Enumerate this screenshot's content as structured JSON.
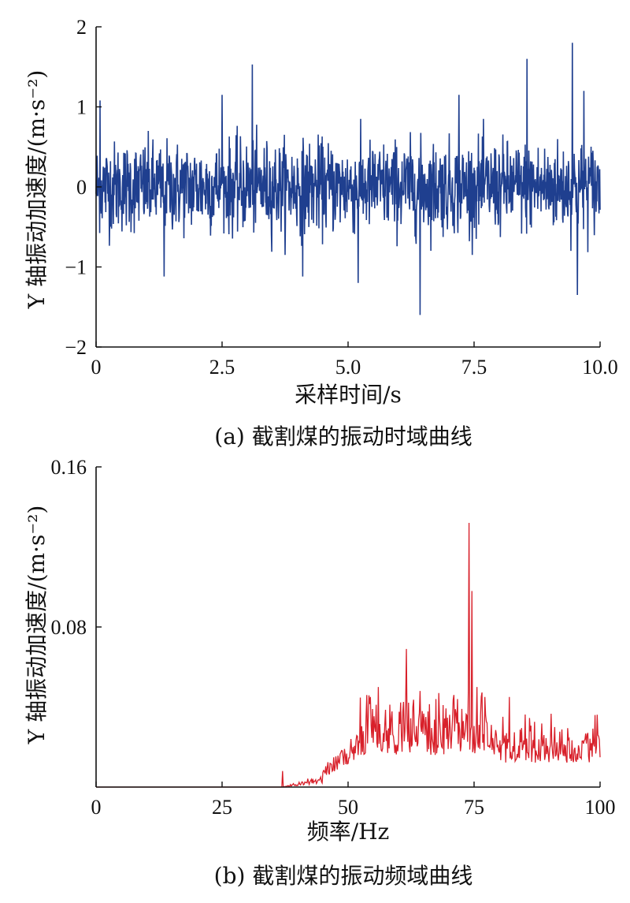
{
  "chart_data": [
    {
      "type": "line",
      "color": "#1f3f8f",
      "ylabel": "Y 轴振动加速度/(m·s⁻²)",
      "xlabel": "采样时间/s",
      "caption": "(a) 截割煤的振动时域曲线",
      "xlim": [
        0,
        10
      ],
      "ylim": [
        -2,
        2
      ],
      "xticks": [
        0,
        2.5,
        5.0,
        7.5,
        10.0
      ],
      "xtick_labels": [
        "0",
        "2.5",
        "5.0",
        "7.5",
        "10.0"
      ],
      "yticks": [
        -2,
        -1,
        0,
        1,
        2
      ],
      "ytick_labels": [
        "−2",
        "−1",
        "0",
        "1",
        "2"
      ],
      "peaks": [
        {
          "x": 0.08,
          "y": 1.08
        },
        {
          "x": 1.35,
          "y": -1.12
        },
        {
          "x": 3.1,
          "y": 1.53
        },
        {
          "x": 4.1,
          "y": -1.12
        },
        {
          "x": 6.43,
          "y": -1.6
        },
        {
          "x": 8.55,
          "y": 1.6
        },
        {
          "x": 9.45,
          "y": 1.8
        },
        {
          "x": 9.55,
          "y": -1.35
        },
        {
          "x": 9.68,
          "y": 1.2
        },
        {
          "x": 5.2,
          "y": -1.2
        },
        {
          "x": 2.5,
          "y": 1.15
        },
        {
          "x": 7.2,
          "y": 1.15
        }
      ]
    },
    {
      "type": "line",
      "color": "#d8202a",
      "ylabel": "Y 轴振动加速度/(m·s⁻²)",
      "xlabel": "频率/Hz",
      "caption": "(b) 截割煤的振动频域曲线",
      "xlim": [
        0,
        100
      ],
      "ylim": [
        0,
        0.16
      ],
      "xticks": [
        0,
        25,
        50,
        75,
        100
      ],
      "xtick_labels": [
        "0",
        "25",
        "50",
        "75",
        "100"
      ],
      "yticks": [
        0.08,
        0.16
      ],
      "ytick_labels": [
        "0.08",
        "0.16"
      ],
      "peaks": [
        {
          "x": 37,
          "y": 0.008
        },
        {
          "x": 61.5,
          "y": 0.069
        },
        {
          "x": 74,
          "y": 0.132
        },
        {
          "x": 74.5,
          "y": 0.098
        },
        {
          "x": 75.5,
          "y": 0.05
        },
        {
          "x": 68,
          "y": 0.047
        },
        {
          "x": 71,
          "y": 0.046
        },
        {
          "x": 82,
          "y": 0.045
        },
        {
          "x": 99,
          "y": 0.036
        }
      ]
    }
  ]
}
